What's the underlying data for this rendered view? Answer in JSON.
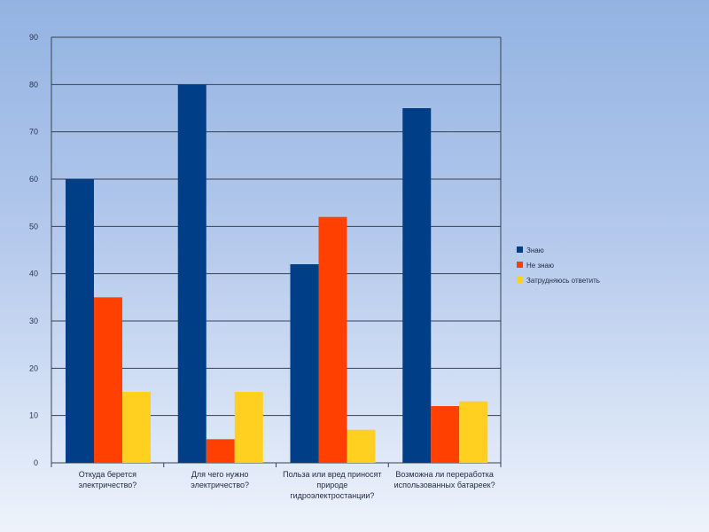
{
  "chart_data": {
    "type": "bar",
    "categories": [
      [
        "Откуда берется",
        "электричество?"
      ],
      [
        "Для чего нужно",
        "электричество?"
      ],
      [
        "Польза или вред приносят",
        "природе",
        "гидроэлектростанции?"
      ],
      [
        "Возможна ли переработка",
        "использованных батареек?"
      ]
    ],
    "series": [
      {
        "name": "Знаю",
        "color": "#003f87",
        "values": [
          60,
          80,
          42,
          75
        ]
      },
      {
        "name": "Не знаю",
        "color": "#ff4000",
        "values": [
          35,
          5,
          52,
          12
        ]
      },
      {
        "name": "Затрудняюсь ответить",
        "color": "#ffd020",
        "values": [
          15,
          15,
          7,
          13
        ]
      }
    ],
    "yticks": [
      "0",
      "10",
      "20",
      "30",
      "40",
      "50",
      "60",
      "70",
      "80",
      "90"
    ],
    "ylim": [
      0,
      90
    ],
    "grid": true,
    "legend": "right"
  }
}
